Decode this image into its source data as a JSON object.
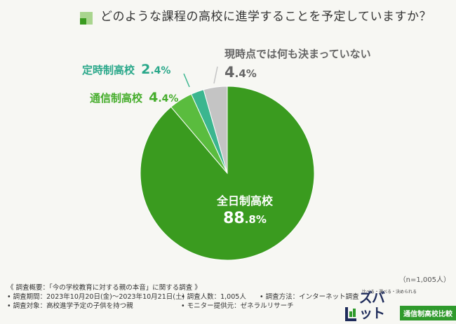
{
  "title": "どのような課程の高校に進学することを予定していますか？",
  "chart_data": {
    "type": "pie",
    "slices": [
      {
        "name": "全日制高校",
        "pct_main": "88",
        "pct_sub": ".8%",
        "value": 88.8,
        "color": "#3a9b1f"
      },
      {
        "name": "通信制高校",
        "pct_main": "4",
        "pct_sub": ".4%",
        "value": 4.4,
        "color": "#5abc3e"
      },
      {
        "name": "定時制高校",
        "pct_main": "2",
        "pct_sub": ".4%",
        "value": 2.4,
        "color": "#3bb68f"
      },
      {
        "name": "現時点では何も決まっていない",
        "pct_main": "4",
        "pct_sub": ".4%",
        "value": 4.4,
        "color": "#c4c4c4"
      }
    ]
  },
  "n_note": "（n=1,005人）",
  "survey": {
    "heading": "《 調査概要：「今の学校教育に対する親の本音」に関する調査 》",
    "period": "• 調査期間：2023年10月20日(金)〜2023年10月21日(土)",
    "count": "• 調査人数：1,005人",
    "method": "• 調査方法：インターネット調査",
    "target": "• 調査対象：高校進学予定の子供を持つ親",
    "provider": "• モニター提供元：ゼネラルリサーチ"
  },
  "logo": {
    "tagline": "比べる・選べる・決められる",
    "name": "ズバット",
    "badge": "通信制高校比較"
  },
  "colors": {
    "title_icon_dark": "#3a9b1f",
    "title_icon_light": "#a9d58e",
    "teal_label": "#2aa88a",
    "green_label": "#46ad2c",
    "gray_label": "#666666"
  }
}
